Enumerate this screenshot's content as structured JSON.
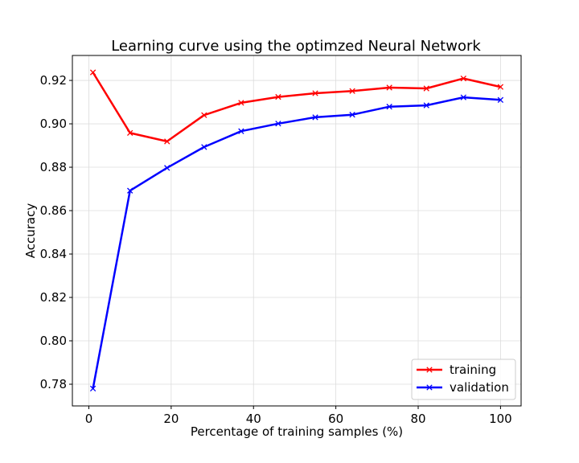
{
  "chart_data": {
    "type": "line",
    "title": "Learning curve using the optimzed Neural Network",
    "xlabel": "Percentage of training samples (%)",
    "ylabel": "Accuracy",
    "xlim": [
      -4,
      105
    ],
    "ylim": [
      0.77,
      0.9315
    ],
    "xticks": [
      0,
      20,
      40,
      60,
      80,
      100
    ],
    "yticks": [
      0.78,
      0.8,
      0.82,
      0.84,
      0.86,
      0.88,
      0.9,
      0.92
    ],
    "xtick_labels": [
      "0",
      "20",
      "40",
      "60",
      "80",
      "100"
    ],
    "ytick_labels": [
      "0.78",
      "0.80",
      "0.82",
      "0.84",
      "0.86",
      "0.88",
      "0.90",
      "0.92"
    ],
    "grid": true,
    "legend_position": "bottom-right",
    "x": [
      1,
      10,
      19,
      28,
      37,
      46,
      55,
      64,
      73,
      82,
      91,
      100
    ],
    "series": [
      {
        "name": "training",
        "color": "#ff0000",
        "marker": "x",
        "values": [
          0.9237,
          0.8958,
          0.8919,
          0.904,
          0.9097,
          0.9124,
          0.9141,
          0.9151,
          0.9167,
          0.9163,
          0.9209,
          0.917
        ]
      },
      {
        "name": "validation",
        "color": "#0000ff",
        "marker": "x",
        "values": [
          0.778,
          0.8692,
          0.8797,
          0.8893,
          0.8966,
          0.9001,
          0.903,
          0.9042,
          0.9079,
          0.9085,
          0.9122,
          0.911
        ]
      }
    ]
  }
}
